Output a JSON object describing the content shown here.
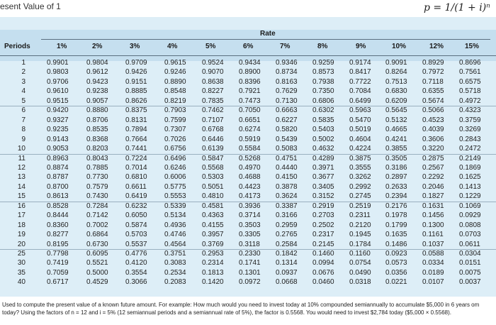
{
  "header": {
    "title": "esent Value of 1",
    "formula": "p = 1/(1 + i)ⁿ"
  },
  "table": {
    "rate_label": "Rate",
    "periods_label": "Periods",
    "columns": [
      "1%",
      "2%",
      "3%",
      "4%",
      "5%",
      "6%",
      "7%",
      "8%",
      "9%",
      "10%",
      "12%",
      "15%"
    ],
    "periods": [
      "1",
      "2",
      "3",
      "4",
      "5",
      "6",
      "7",
      "8",
      "9",
      "10",
      "11",
      "12",
      "13",
      "14",
      "15",
      "16",
      "17",
      "18",
      "19",
      "20",
      "25",
      "30",
      "35",
      "40"
    ],
    "rows": [
      [
        "0.9901",
        "0.9804",
        "0.9709",
        "0.9615",
        "0.9524",
        "0.9434",
        "0.9346",
        "0.9259",
        "0.9174",
        "0.9091",
        "0.8929",
        "0.8696"
      ],
      [
        "0.9803",
        "0.9612",
        "0.9426",
        "0.9246",
        "0.9070",
        "0.8900",
        "0.8734",
        "0.8573",
        "0.8417",
        "0.8264",
        "0.7972",
        "0.7561"
      ],
      [
        "0.9706",
        "0.9423",
        "0.9151",
        "0.8890",
        "0.8638",
        "0.8396",
        "0.8163",
        "0.7938",
        "0.7722",
        "0.7513",
        "0.7118",
        "0.6575"
      ],
      [
        "0.9610",
        "0.9238",
        "0.8885",
        "0.8548",
        "0.8227",
        "0.7921",
        "0.7629",
        "0.7350",
        "0.7084",
        "0.6830",
        "0.6355",
        "0.5718"
      ],
      [
        "0.9515",
        "0.9057",
        "0.8626",
        "0.8219",
        "0.7835",
        "0.7473",
        "0.7130",
        "0.6806",
        "0.6499",
        "0.6209",
        "0.5674",
        "0.4972"
      ],
      [
        "0.9420",
        "0.8880",
        "0.8375",
        "0.7903",
        "0.7462",
        "0.7050",
        "0.6663",
        "0.6302",
        "0.5963",
        "0.5645",
        "0.5066",
        "0.4323"
      ],
      [
        "0.9327",
        "0.8706",
        "0.8131",
        "0.7599",
        "0.7107",
        "0.6651",
        "0.6227",
        "0.5835",
        "0.5470",
        "0.5132",
        "0.4523",
        "0.3759"
      ],
      [
        "0.9235",
        "0.8535",
        "0.7894",
        "0.7307",
        "0.6768",
        "0.6274",
        "0.5820",
        "0.5403",
        "0.5019",
        "0.4665",
        "0.4039",
        "0.3269"
      ],
      [
        "0.9143",
        "0.8368",
        "0.7664",
        "0.7026",
        "0.6446",
        "0.5919",
        "0.5439",
        "0.5002",
        "0.4604",
        "0.4241",
        "0.3606",
        "0.2843"
      ],
      [
        "0.9053",
        "0.8203",
        "0.7441",
        "0.6756",
        "0.6139",
        "0.5584",
        "0.5083",
        "0.4632",
        "0.4224",
        "0.3855",
        "0.3220",
        "0.2472"
      ],
      [
        "0.8963",
        "0.8043",
        "0.7224",
        "0.6496",
        "0.5847",
        "0.5268",
        "0.4751",
        "0.4289",
        "0.3875",
        "0.3505",
        "0.2875",
        "0.2149"
      ],
      [
        "0.8874",
        "0.7885",
        "0.7014",
        "0.6246",
        "0.5568",
        "0.4970",
        "0.4440",
        "0.3971",
        "0.3555",
        "0.3186",
        "0.2567",
        "0.1869"
      ],
      [
        "0.8787",
        "0.7730",
        "0.6810",
        "0.6006",
        "0.5303",
        "0.4688",
        "0.4150",
        "0.3677",
        "0.3262",
        "0.2897",
        "0.2292",
        "0.1625"
      ],
      [
        "0.8700",
        "0.7579",
        "0.6611",
        "0.5775",
        "0.5051",
        "0.4423",
        "0.3878",
        "0.3405",
        "0.2992",
        "0.2633",
        "0.2046",
        "0.1413"
      ],
      [
        "0.8613",
        "0.7430",
        "0.6419",
        "0.5553",
        "0.4810",
        "0.4173",
        "0.3624",
        "0.3152",
        "0.2745",
        "0.2394",
        "0.1827",
        "0.1229"
      ],
      [
        "0.8528",
        "0.7284",
        "0.6232",
        "0.5339",
        "0.4581",
        "0.3936",
        "0.3387",
        "0.2919",
        "0.2519",
        "0.2176",
        "0.1631",
        "0.1069"
      ],
      [
        "0.8444",
        "0.7142",
        "0.6050",
        "0.5134",
        "0.4363",
        "0.3714",
        "0.3166",
        "0.2703",
        "0.2311",
        "0.1978",
        "0.1456",
        "0.0929"
      ],
      [
        "0.8360",
        "0.7002",
        "0.5874",
        "0.4936",
        "0.4155",
        "0.3503",
        "0.2959",
        "0.2502",
        "0.2120",
        "0.1799",
        "0.1300",
        "0.0808"
      ],
      [
        "0.8277",
        "0.6864",
        "0.5703",
        "0.4746",
        "0.3957",
        "0.3305",
        "0.2765",
        "0.2317",
        "0.1945",
        "0.1635",
        "0.1161",
        "0.0703"
      ],
      [
        "0.8195",
        "0.6730",
        "0.5537",
        "0.4564",
        "0.3769",
        "0.3118",
        "0.2584",
        "0.2145",
        "0.1784",
        "0.1486",
        "0.1037",
        "0.0611"
      ],
      [
        "0.7798",
        "0.6095",
        "0.4776",
        "0.3751",
        "0.2953",
        "0.2330",
        "0.1842",
        "0.1460",
        "0.1160",
        "0.0923",
        "0.0588",
        "0.0304"
      ],
      [
        "0.7419",
        "0.5521",
        "0.4120",
        "0.3083",
        "0.2314",
        "0.1741",
        "0.1314",
        "0.0994",
        "0.0754",
        "0.0573",
        "0.0334",
        "0.0151"
      ],
      [
        "0.7059",
        "0.5000",
        "0.3554",
        "0.2534",
        "0.1813",
        "0.1301",
        "0.0937",
        "0.0676",
        "0.0490",
        "0.0356",
        "0.0189",
        "0.0075"
      ],
      [
        "0.6717",
        "0.4529",
        "0.3066",
        "0.2083",
        "0.1420",
        "0.0972",
        "0.0668",
        "0.0460",
        "0.0318",
        "0.0221",
        "0.0107",
        "0.0037"
      ]
    ]
  },
  "footnote": "Used to compute the present value of a known future amount. For example: How much would you need to invest today at 10% compounded semiannually to accumulate $5,000 in 6 years om today? Using the factors of n = 12 and i = 5% (12 semiannual periods and a semiannual rate of 5%), the factor is 0.5568. You would need to invest $2,784 today ($5,000 × 0.5568)."
}
